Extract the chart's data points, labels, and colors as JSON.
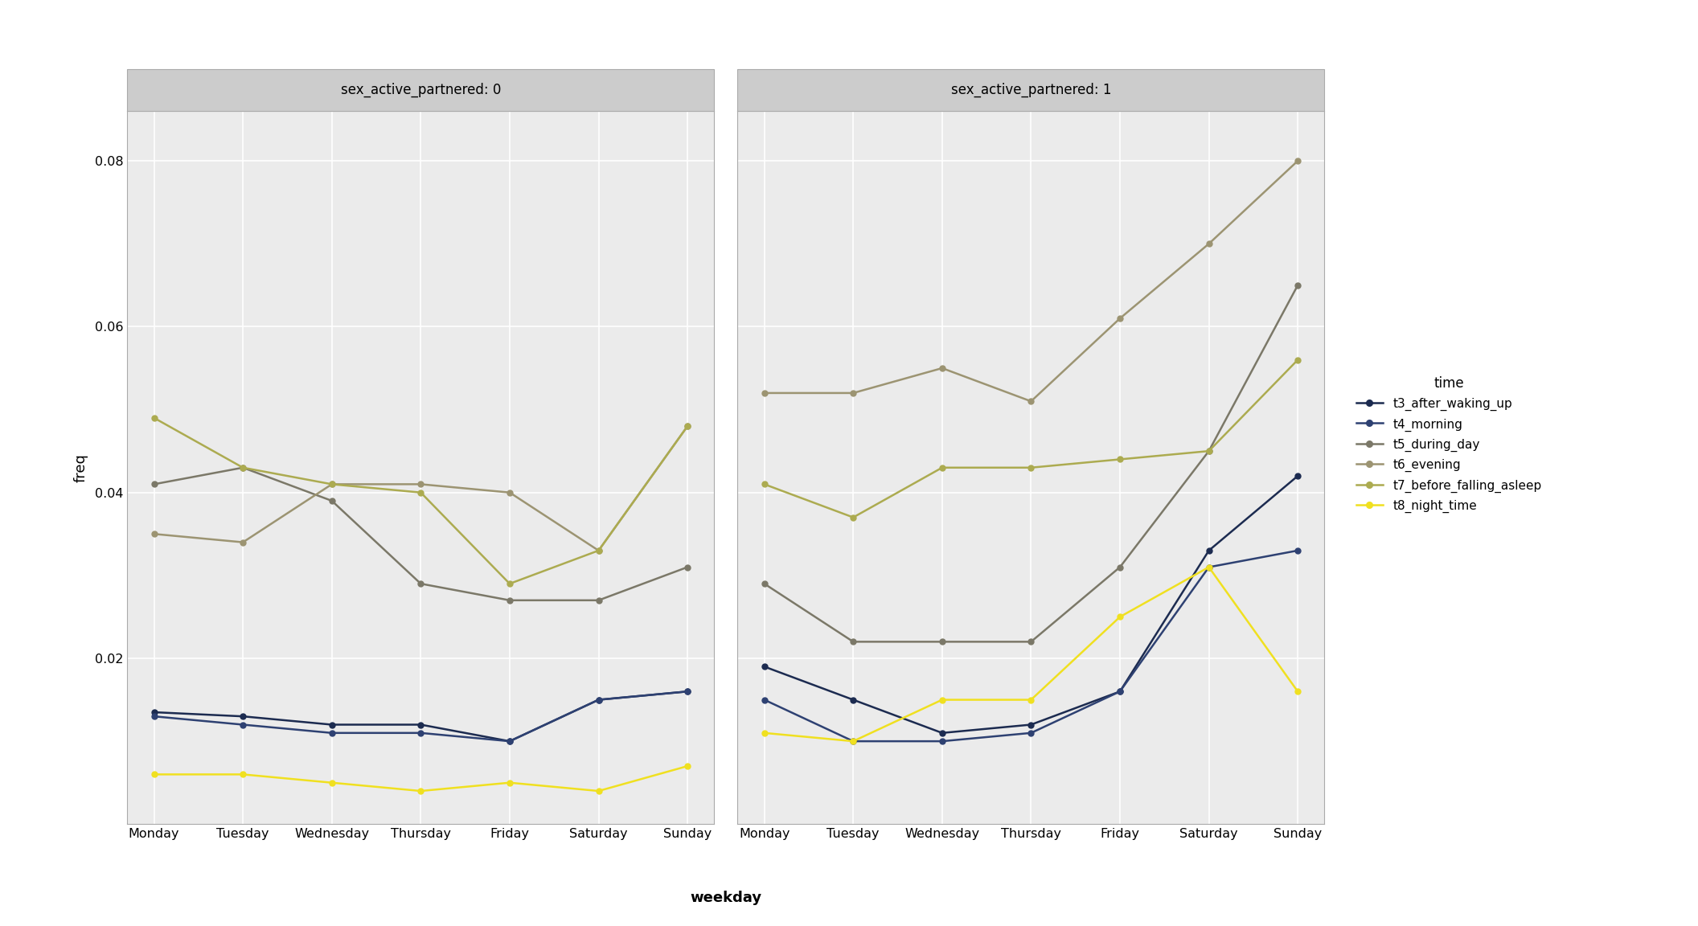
{
  "weekdays": [
    "Monday",
    "Tuesday",
    "Wednesday",
    "Thursday",
    "Friday",
    "Saturday",
    "Sunday"
  ],
  "panel0": {
    "title": "sex_active_partnered: 0",
    "series": {
      "t3_after_waking_up": [
        0.0135,
        0.013,
        0.012,
        0.012,
        0.01,
        0.015,
        0.016
      ],
      "t4_morning": [
        0.013,
        0.012,
        0.011,
        0.011,
        0.01,
        0.015,
        0.016
      ],
      "t5_during_day": [
        0.041,
        0.043,
        0.039,
        0.029,
        0.027,
        0.027,
        0.031
      ],
      "t6_evening": [
        0.035,
        0.034,
        0.041,
        0.041,
        0.04,
        0.033,
        0.048
      ],
      "t7_before_falling_asleep": [
        0.049,
        0.043,
        0.041,
        0.04,
        0.029,
        0.033,
        0.048
      ],
      "t8_night_time": [
        0.006,
        0.006,
        0.005,
        0.004,
        0.005,
        0.004,
        0.007
      ]
    }
  },
  "panel1": {
    "title": "sex_active_partnered: 1",
    "series": {
      "t3_after_waking_up": [
        0.019,
        0.015,
        0.011,
        0.012,
        0.016,
        0.033,
        0.042
      ],
      "t4_morning": [
        0.015,
        0.01,
        0.01,
        0.011,
        0.016,
        0.031,
        0.033
      ],
      "t5_during_day": [
        0.029,
        0.022,
        0.022,
        0.022,
        0.031,
        0.045,
        0.065
      ],
      "t6_evening": [
        0.052,
        0.052,
        0.055,
        0.051,
        0.061,
        0.07,
        0.08
      ],
      "t7_before_falling_asleep": [
        0.041,
        0.037,
        0.043,
        0.043,
        0.044,
        0.045,
        0.056
      ],
      "t8_night_time": [
        0.011,
        0.01,
        0.015,
        0.015,
        0.025,
        0.031,
        0.016
      ]
    }
  },
  "series_colors": {
    "t3_after_waking_up": "#1C2B50",
    "t4_morning": "#2E4172",
    "t5_during_day": "#7B7868",
    "t6_evening": "#9C9472",
    "t7_before_falling_asleep": "#ACAB50",
    "t8_night_time": "#F0E020"
  },
  "series_labels": {
    "t3_after_waking_up": "t3_after_waking_up",
    "t4_morning": "t4_morning",
    "t5_during_day": "t5_during_day",
    "t6_evening": "t6_evening",
    "t7_before_falling_asleep": "t7_before_falling_asleep",
    "t8_night_time": "t8_night_time"
  },
  "ylim": [
    0.0,
    0.086
  ],
  "yticks": [
    0.02,
    0.04,
    0.06,
    0.08
  ],
  "ylabel": "freq",
  "xlabel": "weekday",
  "legend_title": "time",
  "background_color": "#FFFFFF",
  "strip_color": "#CCCCCC",
  "strip_border_color": "#AAAAAA",
  "grid_color": "#FFFFFF",
  "plot_bg_color": "#EBEBEB"
}
